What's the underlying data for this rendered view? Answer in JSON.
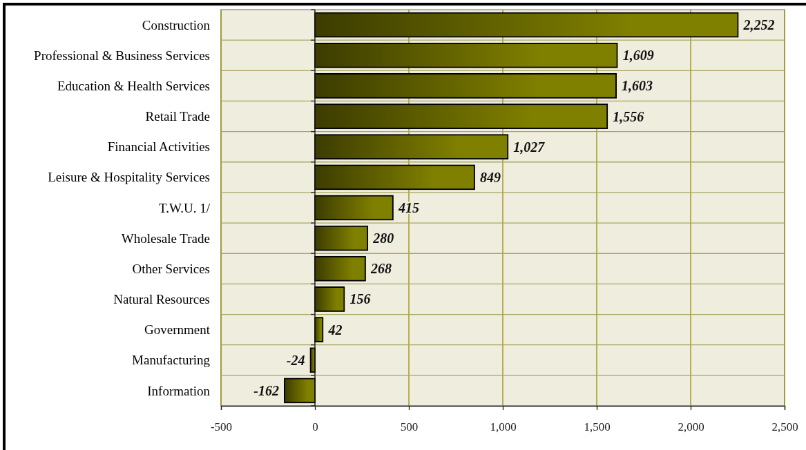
{
  "chart_data": {
    "type": "bar",
    "orientation": "horizontal",
    "categories": [
      "Construction",
      "Professional & Business Services",
      "Education & Health Services",
      "Retail Trade",
      "Financial Activities",
      "Leisure & Hospitality Services",
      "T.W.U. 1/",
      "Wholesale Trade",
      "Other Services",
      "Natural Resources",
      "Government",
      "Manufacturing",
      "Information"
    ],
    "values": [
      2252,
      1609,
      1603,
      1556,
      1027,
      849,
      415,
      280,
      268,
      156,
      42,
      -24,
      -162
    ],
    "value_labels": [
      "2,252",
      "1,609",
      "1,603",
      "1,556",
      "1,027",
      "849",
      "415",
      "280",
      "268",
      "156",
      "42",
      "-24",
      "-162"
    ],
    "color": "#808000",
    "xlim": [
      -500,
      2500
    ],
    "xticks": [
      -500,
      0,
      500,
      {
        "value": 1000,
        "label": "1,000"
      },
      {
        "value": 1500,
        "label": "1,500"
      },
      {
        "value": 2000,
        "label": "2,000"
      },
      {
        "value": 2500,
        "label": "2,500"
      }
    ],
    "grid": true
  }
}
